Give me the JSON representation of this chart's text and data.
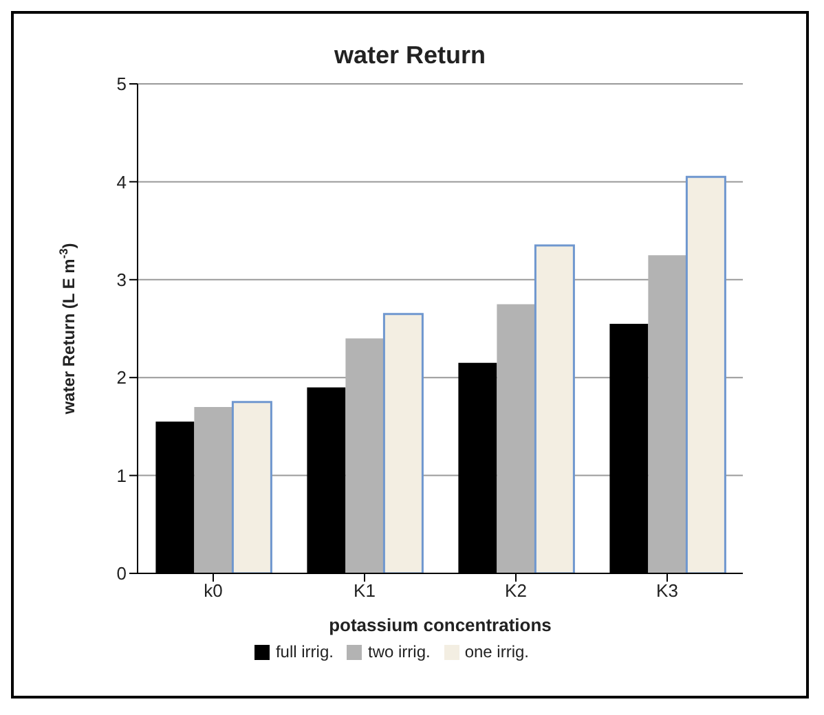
{
  "chart_data": {
    "type": "bar",
    "title": "water Return",
    "xlabel": "potassium concentrations",
    "ylabel": "water Return (L E m$^{-3}$)",
    "categories": [
      "k0",
      "K1",
      "K2",
      "K3"
    ],
    "series": [
      {
        "name": "full irrig.",
        "color": "#000000",
        "values": [
          1.55,
          1.9,
          2.15,
          2.55
        ]
      },
      {
        "name": "two irrig.",
        "color": "#b3b3b3",
        "values": [
          1.7,
          2.4,
          2.75,
          3.25
        ]
      },
      {
        "name": "one irrig.",
        "color": "#f3eee2",
        "values": [
          1.75,
          2.65,
          3.35,
          4.05
        ]
      }
    ],
    "ylim": [
      0,
      5
    ],
    "yticks": [
      0,
      1,
      2,
      3,
      4,
      5
    ],
    "grid": "y",
    "legend": "bottom"
  }
}
